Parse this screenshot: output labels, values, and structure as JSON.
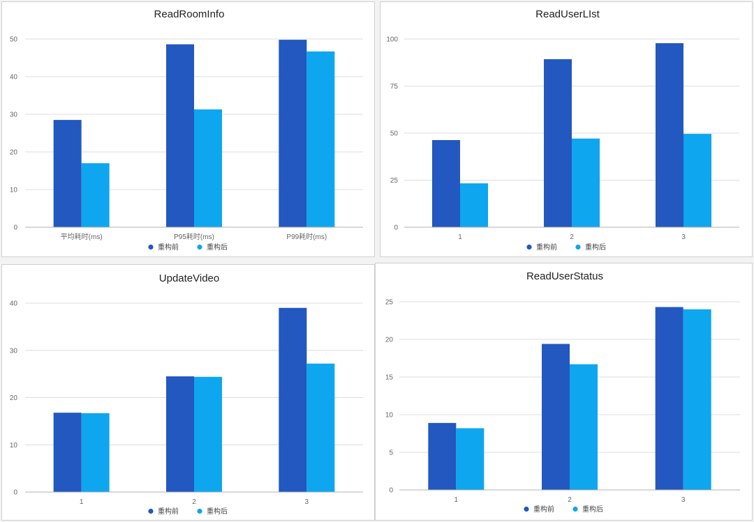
{
  "colors": {
    "before": "#2258bf",
    "after": "#0ea6ef",
    "grid": "#dcdcdc",
    "axis": "#b0b0b0"
  },
  "chart_data": [
    {
      "type": "bar",
      "title": "ReadRoomInfo",
      "categories": [
        "平均耗时(ms)",
        "P95耗时(ms)",
        "P99耗时(ms)"
      ],
      "series": [
        {
          "name": "重构前",
          "values": [
            28.5,
            48.6,
            49.8
          ]
        },
        {
          "name": "重构后",
          "values": [
            17,
            31.3,
            46.7
          ]
        }
      ],
      "ylim": [
        0,
        50
      ],
      "yticks": [
        0,
        10,
        20,
        30,
        40,
        50
      ],
      "legend": "bottom-center",
      "grid": true,
      "xlabel": "",
      "ylabel": ""
    },
    {
      "type": "bar",
      "title": "ReadUserLIst",
      "categories": [
        "1",
        "2",
        "3"
      ],
      "series": [
        {
          "name": "重构前",
          "values": [
            46.3,
            89.3,
            97.8
          ]
        },
        {
          "name": "重构后",
          "values": [
            23.3,
            47.1,
            49.6
          ]
        }
      ],
      "ylim": [
        0,
        100
      ],
      "yticks": [
        0,
        25,
        50,
        75,
        100
      ],
      "legend": "bottom-center",
      "grid": true,
      "xlabel": "",
      "ylabel": ""
    },
    {
      "type": "bar",
      "title": "UpdateVideo",
      "categories": [
        "1",
        "2",
        "3"
      ],
      "series": [
        {
          "name": "重构前",
          "values": [
            16.8,
            24.5,
            39
          ]
        },
        {
          "name": "重构后",
          "values": [
            16.7,
            24.4,
            27.2
          ]
        }
      ],
      "ylim": [
        0,
        40
      ],
      "yticks": [
        0,
        10,
        20,
        30,
        40
      ],
      "legend": "bottom-center",
      "grid": true,
      "xlabel": "",
      "ylabel": ""
    },
    {
      "type": "bar",
      "title": "ReadUserStatus",
      "categories": [
        "1",
        "2",
        "3"
      ],
      "series": [
        {
          "name": "重构前",
          "values": [
            8.9,
            19.4,
            24.3
          ]
        },
        {
          "name": "重构后",
          "values": [
            8.2,
            16.7,
            24
          ]
        }
      ],
      "ylim": [
        0,
        25
      ],
      "yticks": [
        0,
        5,
        10,
        15,
        20,
        25
      ],
      "legend": "bottom-center",
      "grid": true,
      "xlabel": "",
      "ylabel": ""
    }
  ]
}
